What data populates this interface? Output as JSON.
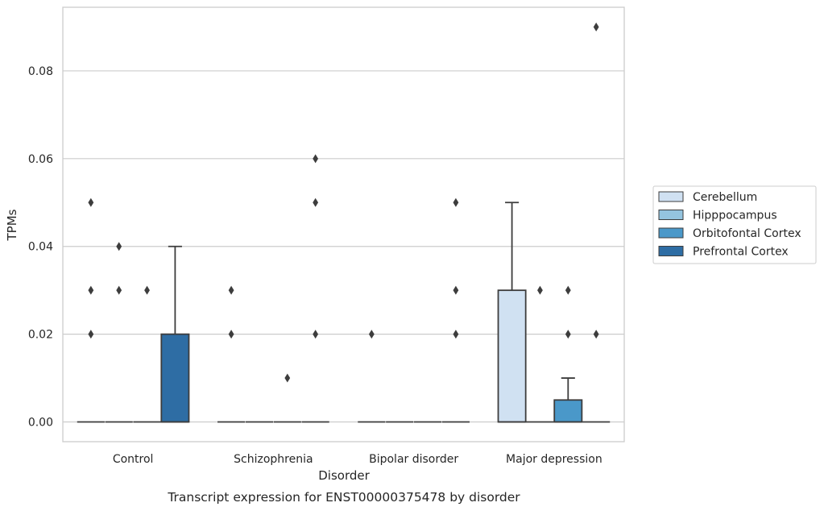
{
  "chart_data": {
    "type": "box",
    "title": "",
    "caption": "Transcript expression for ENST00000375478 by disorder",
    "xlabel": "Disorder",
    "ylabel": "TPMs",
    "categories": [
      "Control",
      "Schizophrenia",
      "Bipolar disorder",
      "Major depression"
    ],
    "ylim": [
      -0.0045,
      0.0945
    ],
    "yticks": [
      0.0,
      0.02,
      0.04,
      0.06,
      0.08
    ],
    "ytick_labels": [
      "0.00",
      "0.02",
      "0.04",
      "0.06",
      "0.08"
    ],
    "grid": "horizontal",
    "legend_position": "right",
    "series": [
      {
        "name": "Cerebellum",
        "color": "#d0e1f2",
        "boxes": [
          {
            "q1": 0,
            "median": 0,
            "q3": 0,
            "whisker_low": 0,
            "whisker_high": 0,
            "outliers": [
              0.02,
              0.03,
              0.05
            ]
          },
          {
            "q1": 0,
            "median": 0,
            "q3": 0,
            "whisker_low": 0,
            "whisker_high": 0,
            "outliers": [
              0.02,
              0.03
            ]
          },
          {
            "q1": 0,
            "median": 0,
            "q3": 0,
            "whisker_low": 0,
            "whisker_high": 0,
            "outliers": [
              0.02
            ]
          },
          {
            "q1": 0,
            "median": 0,
            "q3": 0.03,
            "whisker_low": 0,
            "whisker_high": 0.05,
            "outliers": []
          }
        ]
      },
      {
        "name": "Hipppocampus",
        "color": "#94c4df",
        "boxes": [
          {
            "q1": 0,
            "median": 0,
            "q3": 0,
            "whisker_low": 0,
            "whisker_high": 0,
            "outliers": [
              0.03,
              0.04
            ]
          },
          {
            "q1": 0,
            "median": 0,
            "q3": 0,
            "whisker_low": 0,
            "whisker_high": 0,
            "outliers": []
          },
          {
            "q1": 0,
            "median": 0,
            "q3": 0,
            "whisker_low": 0,
            "whisker_high": 0,
            "outliers": []
          },
          {
            "q1": 0,
            "median": 0,
            "q3": 0,
            "whisker_low": 0,
            "whisker_high": 0,
            "outliers": [
              0.03
            ]
          }
        ]
      },
      {
        "name": "Orbitofontal Cortex",
        "color": "#4a98c9",
        "boxes": [
          {
            "q1": 0,
            "median": 0,
            "q3": 0,
            "whisker_low": 0,
            "whisker_high": 0,
            "outliers": [
              0.03
            ]
          },
          {
            "q1": 0,
            "median": 0,
            "q3": 0,
            "whisker_low": 0,
            "whisker_high": 0,
            "outliers": [
              0.01
            ]
          },
          {
            "q1": 0,
            "median": 0,
            "q3": 0,
            "whisker_low": 0,
            "whisker_high": 0,
            "outliers": []
          },
          {
            "q1": 0,
            "median": 0,
            "q3": 0.005,
            "whisker_low": 0,
            "whisker_high": 0.01,
            "outliers": [
              0.02,
              0.03
            ]
          }
        ]
      },
      {
        "name": "Prefrontal Cortex",
        "color": "#2e6da4",
        "boxes": [
          {
            "q1": 0,
            "median": 0,
            "q3": 0.02,
            "whisker_low": 0,
            "whisker_high": 0.04,
            "outliers": []
          },
          {
            "q1": 0,
            "median": 0,
            "q3": 0,
            "whisker_low": 0,
            "whisker_high": 0,
            "outliers": [
              0.02,
              0.05,
              0.06
            ]
          },
          {
            "q1": 0,
            "median": 0,
            "q3": 0,
            "whisker_low": 0,
            "whisker_high": 0,
            "outliers": [
              0.02,
              0.03,
              0.05
            ]
          },
          {
            "q1": 0,
            "median": 0,
            "q3": 0,
            "whisker_low": 0,
            "whisker_high": 0,
            "outliers": [
              0.02,
              0.09
            ]
          }
        ]
      }
    ]
  }
}
